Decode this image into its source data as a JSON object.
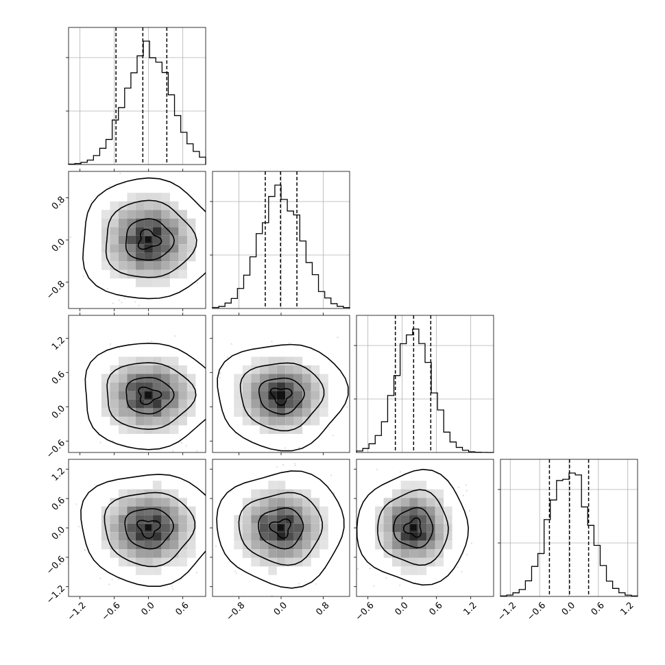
{
  "chart_data": {
    "type": "corner",
    "n_params": 4,
    "distributions": [
      {
        "mean": 0.0,
        "sd": 0.4
      },
      {
        "mean": 0.0,
        "sd": 0.4
      },
      {
        "mean": 0.2,
        "sd": 0.32
      },
      {
        "mean": 0.0,
        "sd": 0.4
      }
    ],
    "quantiles": [
      [
        -0.57,
        -0.1,
        0.32
      ],
      [
        -0.3,
        -0.01,
        0.3
      ],
      [
        -0.12,
        0.2,
        0.5
      ],
      [
        -0.4,
        0.01,
        0.4
      ]
    ],
    "density_levels": [
      "39%",
      "86%",
      "99%"
    ],
    "tick_labels": {
      "x": {
        "col1": [
          "−1.2",
          "−0.6",
          "0.0",
          "0.6"
        ],
        "col2": [
          "−0.8",
          "0.0",
          "0.8"
        ],
        "col3": [
          "−0.6",
          "0.0",
          "0.6",
          "1.2"
        ],
        "col4": [
          "−1.2",
          "−0.6",
          "0.0",
          "0.6",
          "1.2"
        ]
      },
      "y": {
        "row2": [
          "−0.8",
          "0.0",
          "0.8"
        ],
        "row3": [
          "−0.6",
          "0.0",
          "0.6",
          "1.2"
        ],
        "row4": [
          "−1.2",
          "−0.6",
          "0.0",
          "0.6",
          "1.2"
        ]
      }
    },
    "ticks": {
      "x": {
        "col1": [
          -1.2,
          -0.6,
          0.0,
          0.6
        ],
        "col2": [
          -0.8,
          0.0,
          0.8
        ],
        "col3": [
          -0.6,
          0.0,
          0.6,
          1.2
        ],
        "col4": [
          -1.2,
          -0.6,
          0.0,
          0.6,
          1.2
        ]
      },
      "y": {
        "row2": [
          -0.8,
          0.0,
          0.8
        ],
        "row3": [
          -0.6,
          0.0,
          0.6,
          1.2
        ],
        "row4": [
          -1.2,
          -0.6,
          0.0,
          0.6,
          1.2
        ]
      }
    },
    "ranges": [
      [
        -1.4,
        1.0
      ],
      [
        -1.3,
        1.3
      ],
      [
        -0.8,
        1.6
      ],
      [
        -1.4,
        1.4
      ]
    ],
    "grid": true,
    "xlabel": "",
    "ylabel": "",
    "title": ""
  }
}
